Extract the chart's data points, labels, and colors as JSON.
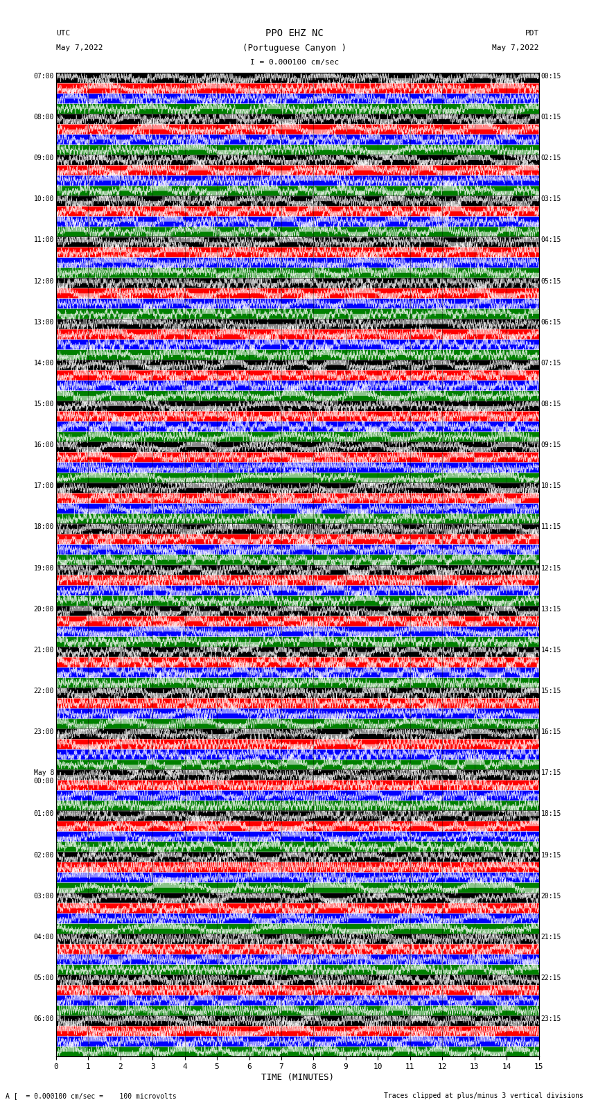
{
  "title_line1": "PPO EHZ NC",
  "title_line2": "(Portuguese Canyon )",
  "title_line3": "I = 0.000100 cm/sec",
  "left_header_line1": "UTC",
  "left_header_line2": "May 7,2022",
  "right_header_line1": "PDT",
  "right_header_line2": "May 7,2022",
  "xlabel": "TIME (MINUTES)",
  "footer_left": "A [  = 0.000100 cm/sec =    100 microvolts",
  "footer_right": "Traces clipped at plus/minus 3 vertical divisions",
  "utc_times": [
    "07:00",
    "08:00",
    "09:00",
    "10:00",
    "11:00",
    "12:00",
    "13:00",
    "14:00",
    "15:00",
    "16:00",
    "17:00",
    "18:00",
    "19:00",
    "20:00",
    "21:00",
    "22:00",
    "23:00",
    "May 8\n00:00",
    "01:00",
    "02:00",
    "03:00",
    "04:00",
    "05:00",
    "06:00"
  ],
  "pdt_times": [
    "00:15",
    "01:15",
    "02:15",
    "03:15",
    "04:15",
    "05:15",
    "06:15",
    "07:15",
    "08:15",
    "09:15",
    "10:15",
    "11:15",
    "12:15",
    "13:15",
    "14:15",
    "15:15",
    "16:15",
    "17:15",
    "18:15",
    "19:15",
    "20:15",
    "21:15",
    "22:15",
    "23:15"
  ],
  "n_rows": 24,
  "n_traces_per_row": 4,
  "trace_colors": [
    "black",
    "red",
    "blue",
    "green"
  ],
  "bg_color": "white",
  "fig_width": 8.5,
  "fig_height": 16.13,
  "xmin": 0,
  "xmax": 15,
  "xticks": [
    0,
    1,
    2,
    3,
    4,
    5,
    6,
    7,
    8,
    9,
    10,
    11,
    12,
    13,
    14,
    15
  ]
}
